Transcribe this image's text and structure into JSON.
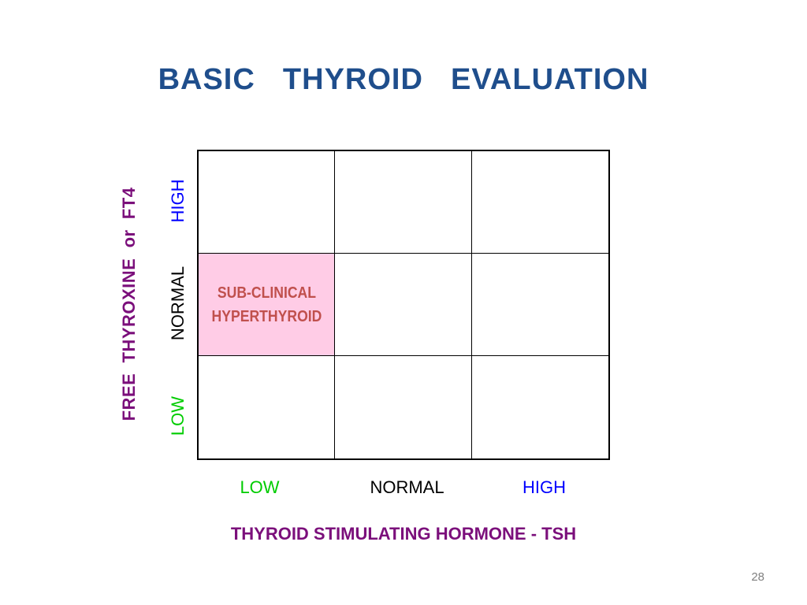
{
  "title": "BASIC  THYROID  EVALUATION",
  "y_axis": {
    "title": "FREE  THYROXINE  or  FT4",
    "levels": [
      {
        "label": "HIGH",
        "color": "#0000FF"
      },
      {
        "label": "NORMAL",
        "color": "#000000"
      },
      {
        "label": "LOW",
        "color": "#00CC00"
      }
    ]
  },
  "x_axis": {
    "title": "THYROID STIMULATING HORMONE - TSH",
    "levels": [
      {
        "label": "LOW",
        "color": "#00CC00"
      },
      {
        "label": "NORMAL",
        "color": "#000000"
      },
      {
        "label": "HIGH",
        "color": "#0000FF"
      }
    ]
  },
  "grid": {
    "highlight_cell": {
      "line1": "SUB-CLINICAL",
      "line2": "HYPERTHYROID",
      "fill": "#FFCCE6",
      "text_color": "#C0504D"
    }
  },
  "page_number": "28"
}
